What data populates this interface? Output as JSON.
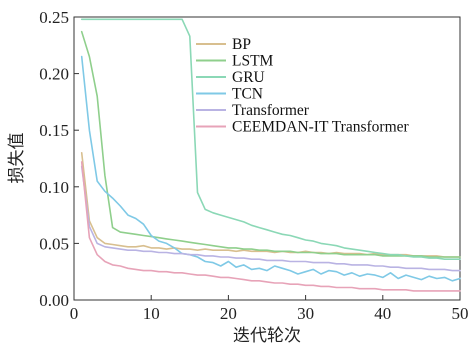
{
  "chart_data": {
    "type": "line",
    "xlabel": "迭代轮次",
    "ylabel": "损失值",
    "xlim": [
      0,
      50
    ],
    "ylim": [
      0,
      0.25
    ],
    "xticks": [
      0,
      10,
      20,
      30,
      40,
      50
    ],
    "yticks": [
      0.0,
      0.05,
      0.1,
      0.15,
      0.2,
      0.25
    ],
    "ytick_labels": [
      "0.00",
      "0.05",
      "0.10",
      "0.15",
      "0.20",
      "0.25"
    ],
    "grid": false,
    "legend_position": "top-right",
    "x": [
      1,
      2,
      3,
      4,
      5,
      6,
      7,
      8,
      9,
      10,
      11,
      12,
      13,
      14,
      15,
      16,
      17,
      18,
      19,
      20,
      21,
      22,
      23,
      24,
      25,
      26,
      27,
      28,
      29,
      30,
      31,
      32,
      33,
      34,
      35,
      36,
      37,
      38,
      39,
      40,
      41,
      42,
      43,
      44,
      45,
      46,
      47,
      48,
      49,
      50
    ],
    "series": [
      {
        "name": "BP",
        "color": "#d8bf8f",
        "values": [
          0.13,
          0.07,
          0.055,
          0.05,
          0.049,
          0.048,
          0.047,
          0.047,
          0.048,
          0.046,
          0.046,
          0.045,
          0.046,
          0.045,
          0.045,
          0.044,
          0.045,
          0.044,
          0.044,
          0.044,
          0.043,
          0.044,
          0.043,
          0.043,
          0.043,
          0.042,
          0.043,
          0.042,
          0.042,
          0.043,
          0.042,
          0.042,
          0.041,
          0.042,
          0.041,
          0.041,
          0.041,
          0.04,
          0.041,
          0.04,
          0.04,
          0.04,
          0.04,
          0.039,
          0.039,
          0.039,
          0.039,
          0.038,
          0.038,
          0.038
        ]
      },
      {
        "name": "LSTM",
        "color": "#8fcf8c",
        "values": [
          0.237,
          0.215,
          0.18,
          0.11,
          0.064,
          0.06,
          0.059,
          0.058,
          0.057,
          0.056,
          0.055,
          0.054,
          0.053,
          0.052,
          0.051,
          0.05,
          0.049,
          0.048,
          0.047,
          0.046,
          0.046,
          0.045,
          0.045,
          0.044,
          0.044,
          0.043,
          0.043,
          0.043,
          0.042,
          0.042,
          0.042,
          0.041,
          0.041,
          0.041,
          0.04,
          0.04,
          0.04,
          0.04,
          0.04,
          0.039,
          0.039,
          0.039,
          0.039,
          0.039,
          0.039,
          0.038,
          0.038,
          0.038,
          0.038,
          0.038
        ]
      },
      {
        "name": "GRU",
        "color": "#8bd8b6",
        "values": [
          0.248,
          0.248,
          0.248,
          0.248,
          0.248,
          0.248,
          0.248,
          0.248,
          0.248,
          0.248,
          0.248,
          0.248,
          0.248,
          0.248,
          0.233,
          0.095,
          0.08,
          0.077,
          0.075,
          0.073,
          0.071,
          0.069,
          0.066,
          0.064,
          0.062,
          0.06,
          0.058,
          0.057,
          0.055,
          0.053,
          0.052,
          0.05,
          0.049,
          0.048,
          0.046,
          0.045,
          0.044,
          0.043,
          0.042,
          0.041,
          0.04,
          0.04,
          0.039,
          0.038,
          0.038,
          0.037,
          0.037,
          0.036,
          0.036,
          0.036
        ]
      },
      {
        "name": "TCN",
        "color": "#7fc9e6",
        "values": [
          0.215,
          0.15,
          0.105,
          0.096,
          0.09,
          0.083,
          0.075,
          0.072,
          0.067,
          0.057,
          0.052,
          0.05,
          0.046,
          0.041,
          0.04,
          0.038,
          0.034,
          0.033,
          0.03,
          0.034,
          0.029,
          0.031,
          0.027,
          0.028,
          0.026,
          0.03,
          0.028,
          0.026,
          0.023,
          0.025,
          0.027,
          0.023,
          0.026,
          0.025,
          0.022,
          0.024,
          0.021,
          0.023,
          0.022,
          0.02,
          0.024,
          0.019,
          0.022,
          0.02,
          0.018,
          0.021,
          0.019,
          0.02,
          0.017,
          0.019
        ]
      },
      {
        "name": "Transformer",
        "color": "#b9b3e3",
        "values": [
          0.118,
          0.065,
          0.05,
          0.047,
          0.046,
          0.045,
          0.044,
          0.044,
          0.043,
          0.043,
          0.042,
          0.042,
          0.041,
          0.041,
          0.04,
          0.04,
          0.039,
          0.039,
          0.038,
          0.038,
          0.037,
          0.037,
          0.036,
          0.036,
          0.035,
          0.035,
          0.035,
          0.034,
          0.034,
          0.034,
          0.033,
          0.033,
          0.033,
          0.032,
          0.032,
          0.031,
          0.031,
          0.031,
          0.03,
          0.03,
          0.029,
          0.029,
          0.028,
          0.028,
          0.028,
          0.027,
          0.027,
          0.027,
          0.026,
          0.026
        ]
      },
      {
        "name": "CEEMDAN-IT Transformer",
        "color": "#e7a3b8",
        "values": [
          0.122,
          0.055,
          0.04,
          0.034,
          0.031,
          0.03,
          0.028,
          0.027,
          0.026,
          0.026,
          0.025,
          0.025,
          0.024,
          0.024,
          0.023,
          0.022,
          0.022,
          0.021,
          0.02,
          0.02,
          0.019,
          0.018,
          0.017,
          0.017,
          0.016,
          0.015,
          0.015,
          0.014,
          0.014,
          0.013,
          0.013,
          0.012,
          0.012,
          0.011,
          0.011,
          0.011,
          0.01,
          0.01,
          0.01,
          0.009,
          0.009,
          0.009,
          0.009,
          0.008,
          0.008,
          0.008,
          0.008,
          0.008,
          0.008,
          0.008
        ]
      }
    ]
  }
}
